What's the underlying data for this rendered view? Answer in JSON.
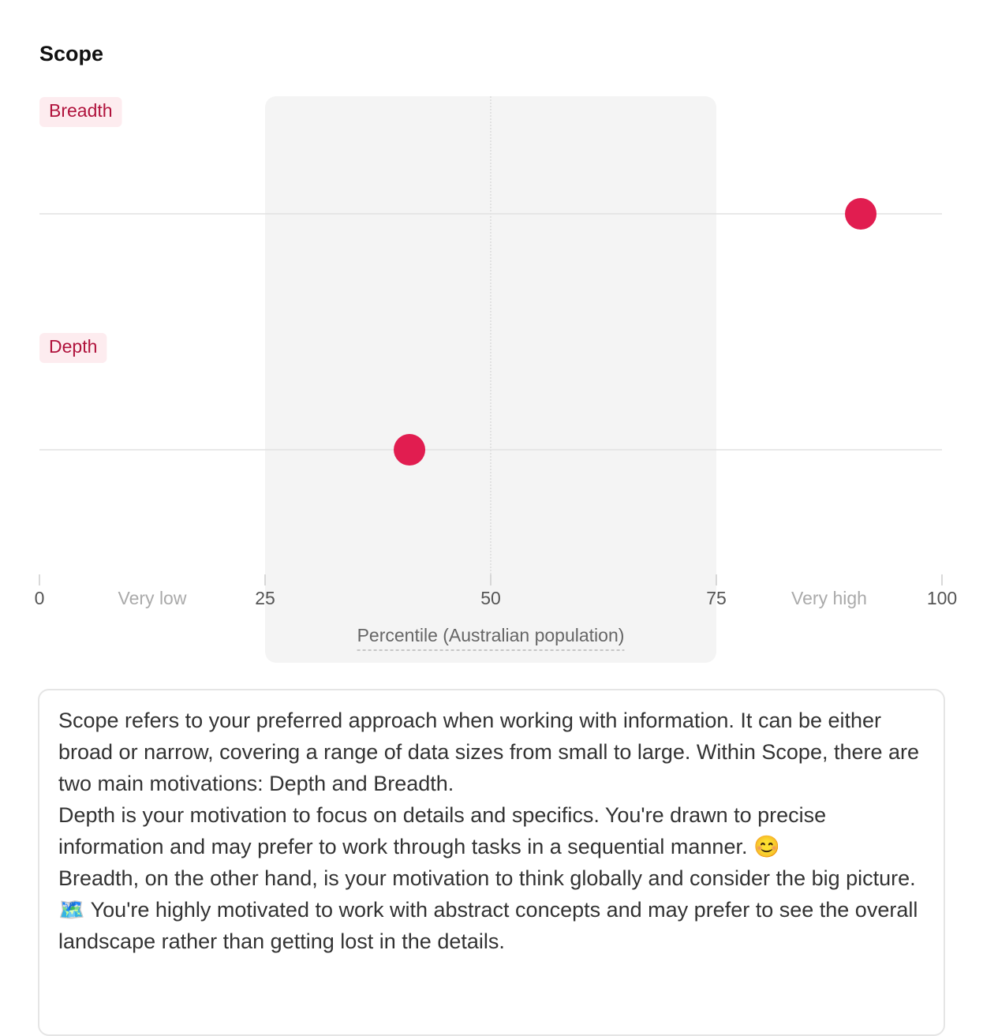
{
  "chart_data": {
    "type": "dot",
    "title": "Scope",
    "categories": [
      "Breadth",
      "Depth"
    ],
    "values": [
      91,
      41
    ],
    "color": "#e11d50",
    "xlim": [
      0,
      100
    ],
    "xticks": [
      0,
      25,
      50,
      75,
      100
    ],
    "zone_labels": [
      {
        "value": 12.5,
        "label": "Very low"
      },
      {
        "value": 87.5,
        "label": "Very high"
      }
    ],
    "shaded_range": [
      25,
      75
    ],
    "xlabel": "Percentile (Australian population)"
  },
  "description": [
    "Scope refers to your preferred approach when working with information. It can be either broad or narrow, covering a range of data sizes from small to large. Within Scope, there are two main motivations: Depth and Breadth.",
    "Depth is your motivation to focus on details and specifics. You're drawn to precise information and may prefer to work through tasks in a sequential manner. 😊",
    "Breadth, on the other hand, is your motivation to think globally and consider the big picture. 🗺️ You're highly motivated to work with abstract concepts and may prefer to see the overall landscape rather than getting lost in the details."
  ]
}
